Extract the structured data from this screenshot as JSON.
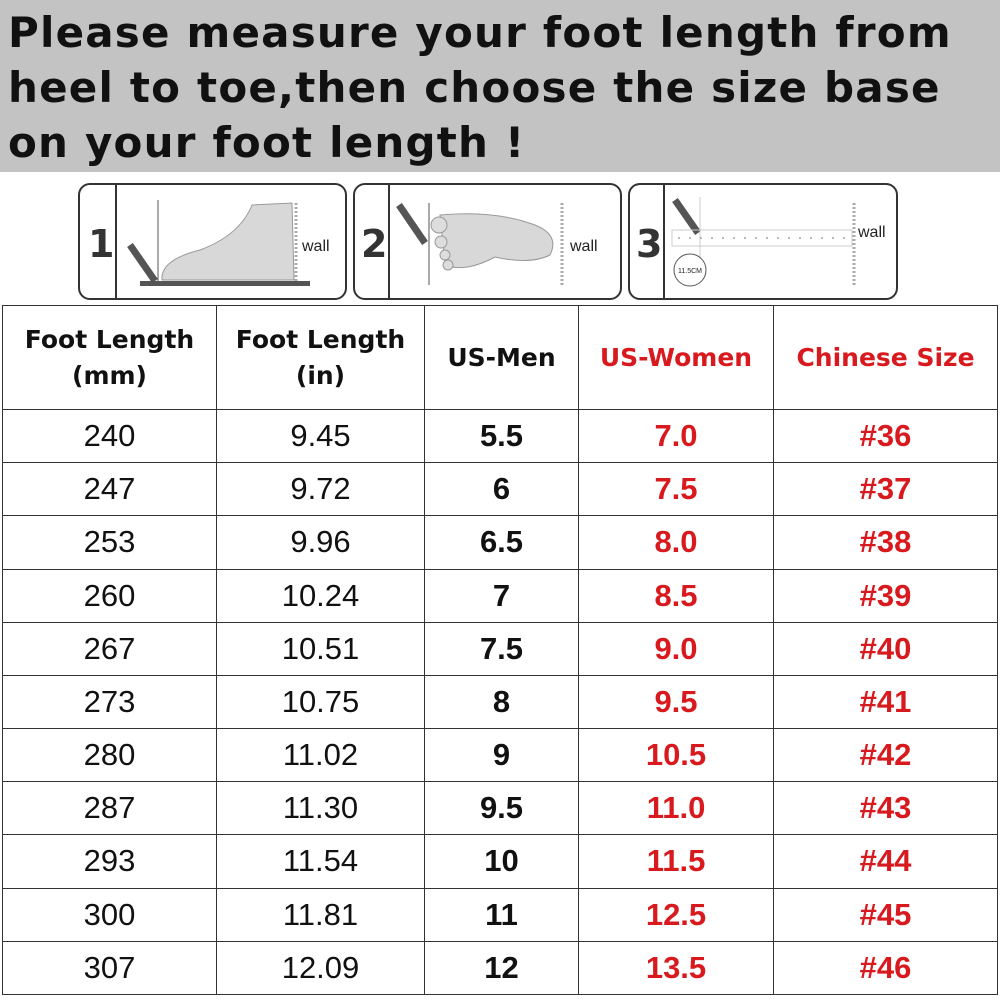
{
  "banner": {
    "lines": [
      "Please measure your foot length from",
      "heel to toe,then choose the size base",
      "on your foot length !"
    ]
  },
  "steps": [
    {
      "number": "1",
      "label": "wall"
    },
    {
      "number": "2",
      "label": "wall"
    },
    {
      "number": "3",
      "label": "wall",
      "measure": "11.5CM"
    }
  ],
  "colors": {
    "accent_red": "#d8191e",
    "banner_bg": "#c3c3c3"
  },
  "table": {
    "headers": [
      {
        "line1": "Foot Length",
        "line2": "(mm)"
      },
      {
        "line1": "Foot Length",
        "line2": "(in)"
      },
      {
        "line1": "US-Men",
        "line2": ""
      },
      {
        "line1": "US-Women",
        "line2": ""
      },
      {
        "line1": "Chinese Size",
        "line2": ""
      }
    ],
    "rows": [
      [
        "240",
        "9.45",
        "5.5",
        "7.0",
        "#36"
      ],
      [
        "247",
        "9.72",
        "6",
        "7.5",
        "#37"
      ],
      [
        "253",
        "9.96",
        "6.5",
        "8.0",
        "#38"
      ],
      [
        "260",
        "10.24",
        "7",
        "8.5",
        "#39"
      ],
      [
        "267",
        "10.51",
        "7.5",
        "9.0",
        "#40"
      ],
      [
        "273",
        "10.75",
        "8",
        "9.5",
        "#41"
      ],
      [
        "280",
        "11.02",
        "9",
        "10.5",
        "#42"
      ],
      [
        "287",
        "11.30",
        "9.5",
        "11.0",
        "#43"
      ],
      [
        "293",
        "11.54",
        "10",
        "11.5",
        "#44"
      ],
      [
        "300",
        "11.81",
        "11",
        "12.5",
        "#45"
      ],
      [
        "307",
        "12.09",
        "12",
        "13.5",
        "#46"
      ]
    ]
  }
}
